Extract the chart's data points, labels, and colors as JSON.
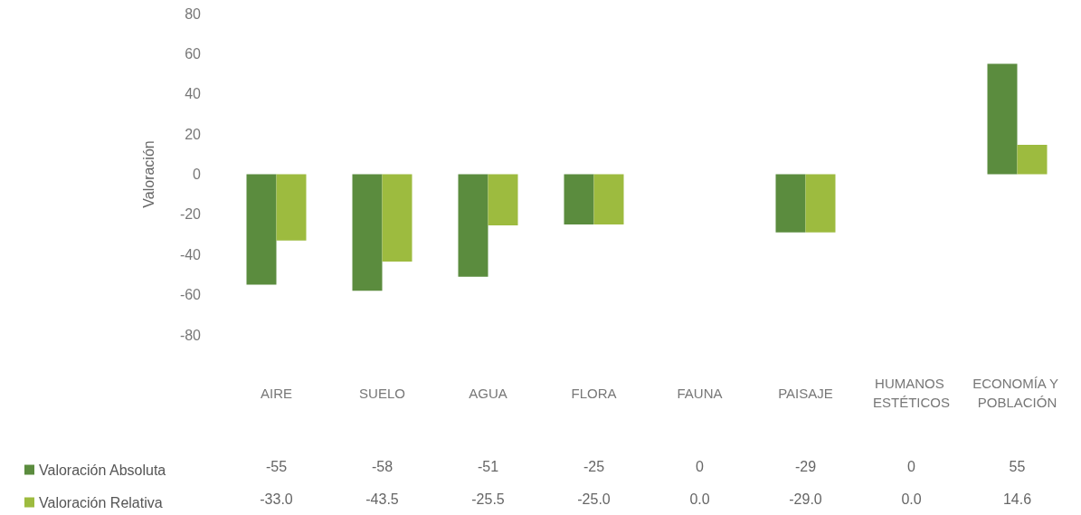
{
  "chart_data": {
    "type": "bar",
    "ylabel": "Valoración",
    "categories": [
      "AIRE",
      "SUELO",
      "AGUA",
      "FLORA",
      "FAUNA",
      "PAISAJE",
      "HUMANOS ESTÉTICOS",
      "ECONOMÍA Y POBLACIÓN"
    ],
    "series": [
      {
        "name": "Valoración Absoluta",
        "color": "#5b8c3e",
        "values": [
          -55,
          -58,
          -51,
          -25,
          0,
          -29,
          0,
          55
        ],
        "value_labels": [
          "-55",
          "-58",
          "-51",
          "-25",
          "0",
          "-29",
          "0",
          "55"
        ]
      },
      {
        "name": "Valoración Relativa",
        "color": "#9dbb3f",
        "values": [
          -33,
          -43.5,
          -25.5,
          -25,
          0,
          -29,
          0,
          14.6
        ],
        "value_labels": [
          "-33.0",
          "-43.5",
          "-25.5",
          "-25.0",
          "0.0",
          "-29.0",
          "0.0",
          "14.6"
        ]
      }
    ],
    "ylim": [
      -80,
      80
    ],
    "yticks": [
      -80,
      -60,
      -40,
      -20,
      0,
      20,
      40,
      60,
      80
    ],
    "grid": false,
    "legend": "bottom left"
  }
}
